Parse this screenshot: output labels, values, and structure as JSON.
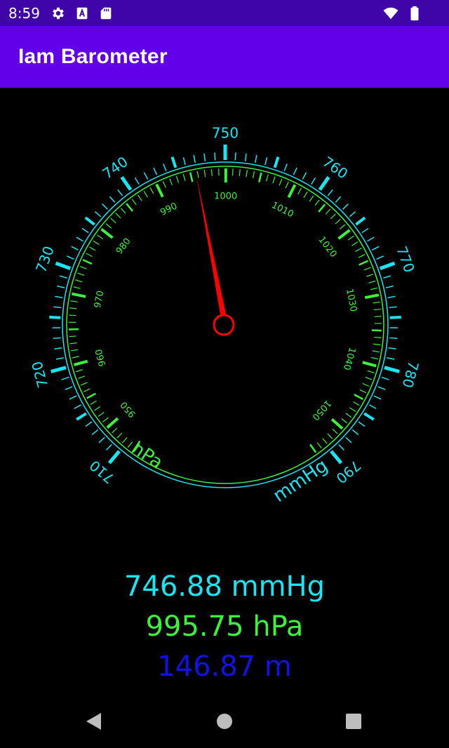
{
  "status_bar": {
    "time": "8:59",
    "icons_left": [
      "gear-icon",
      "font-icon",
      "sd-card-icon"
    ],
    "icons_right": [
      "wifi-icon",
      "battery-icon"
    ]
  },
  "app_bar": {
    "title": "Iam Barometer"
  },
  "gauge": {
    "outer_scale": {
      "unit": "mmHg",
      "min": 710,
      "max": 790,
      "major_step": 10,
      "labels": [
        "710",
        "720",
        "730",
        "740",
        "750",
        "760",
        "770",
        "780",
        "790"
      ],
      "color": "#18e6f2"
    },
    "inner_scale": {
      "unit": "hPa",
      "min": 945,
      "max": 1055,
      "label_step": 10,
      "labels": [
        "950",
        "960",
        "970",
        "980",
        "990",
        "1000",
        "1010",
        "1020",
        "1030",
        "1040",
        "1050"
      ],
      "color": "#3cf23c"
    },
    "needle": {
      "value_mmhg": 746.88,
      "color": "#ff0000"
    }
  },
  "readouts": {
    "mmhg": "746.88 mmHg",
    "hpa": "995.75 hPa",
    "altitude": "146.87 m"
  },
  "nav_bar": {
    "buttons": [
      "back-icon",
      "home-icon",
      "recents-icon"
    ]
  }
}
